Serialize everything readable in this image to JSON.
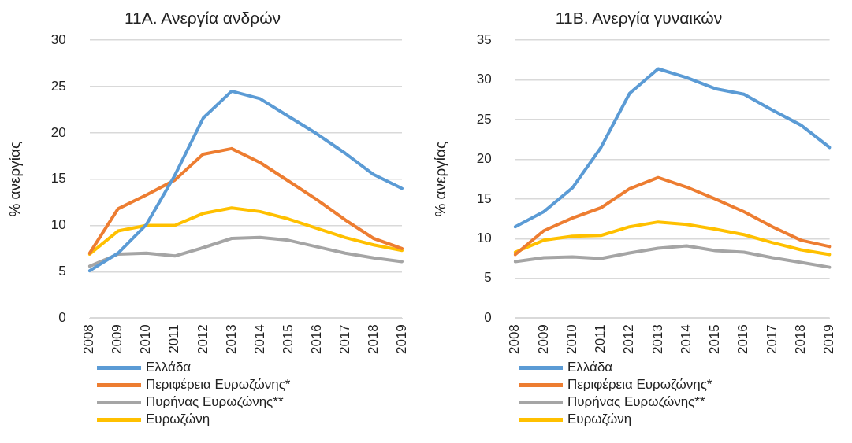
{
  "chart_data": [
    {
      "type": "line",
      "title": "11Α. Ανεργία ανδρών",
      "ylabel": "% ανεργίας",
      "categories": [
        "2008",
        "2009",
        "2010",
        "2011",
        "2012",
        "2013",
        "2014",
        "2015",
        "2016",
        "2017",
        "2018",
        "2019"
      ],
      "ylim": [
        0,
        30
      ],
      "yticks": [
        0,
        5,
        10,
        15,
        20,
        25,
        30
      ],
      "grid": "y",
      "legend": "bottom left",
      "marker": "none",
      "line_style": "solid",
      "series": [
        {
          "name": "Ελλάδα",
          "color": "#5b9bd5",
          "values": [
            5.1,
            7.0,
            10.1,
            15.4,
            21.6,
            24.5,
            23.7,
            21.8,
            19.9,
            17.8,
            15.5,
            14.0
          ]
        },
        {
          "name": "Περιφέρεια Ευρωζώνης*",
          "color": "#ed7d31",
          "values": [
            7.0,
            11.8,
            13.3,
            14.9,
            17.7,
            18.3,
            16.8,
            14.8,
            12.8,
            10.6,
            8.6,
            7.5
          ]
        },
        {
          "name": "Πυρήνας Ευρωζώνης**",
          "color": "#a5a5a5",
          "values": [
            5.6,
            6.9,
            7.0,
            6.7,
            7.6,
            8.6,
            8.7,
            8.4,
            7.7,
            7.0,
            6.5,
            6.1
          ]
        },
        {
          "name": "Ευρωζώνη",
          "color": "#ffc000",
          "values": [
            6.9,
            9.4,
            10.0,
            10.0,
            11.3,
            11.9,
            11.5,
            10.7,
            9.7,
            8.7,
            7.9,
            7.3
          ]
        }
      ]
    },
    {
      "type": "line",
      "title": "11Β. Ανεργία γυναικών",
      "ylabel": "% ανεργίας",
      "categories": [
        "2008",
        "2009",
        "2010",
        "2011",
        "2012",
        "2013",
        "2014",
        "2015",
        "2016",
        "2017",
        "2018",
        "2019"
      ],
      "ylim": [
        0,
        35
      ],
      "yticks": [
        0,
        5,
        10,
        15,
        20,
        25,
        30,
        35
      ],
      "grid": "y",
      "legend": "bottom left",
      "marker": "none",
      "line_style": "solid",
      "series": [
        {
          "name": "Ελλάδα",
          "color": "#5b9bd5",
          "values": [
            11.5,
            13.4,
            16.4,
            21.5,
            28.3,
            31.4,
            30.3,
            28.9,
            28.2,
            26.2,
            24.3,
            21.5
          ]
        },
        {
          "name": "Περιφέρεια Ευρωζώνης*",
          "color": "#ed7d31",
          "values": [
            8.0,
            11.0,
            12.6,
            13.9,
            16.3,
            17.7,
            16.5,
            15.0,
            13.4,
            11.5,
            9.8,
            9.0
          ]
        },
        {
          "name": "Πυρήνας Ευρωζώνης**",
          "color": "#a5a5a5",
          "values": [
            7.1,
            7.6,
            7.7,
            7.5,
            8.2,
            8.8,
            9.1,
            8.5,
            8.3,
            7.6,
            7.0,
            6.4
          ]
        },
        {
          "name": "Ευρωζώνη",
          "color": "#ffc000",
          "values": [
            8.3,
            9.8,
            10.3,
            10.4,
            11.5,
            12.1,
            11.8,
            11.2,
            10.5,
            9.5,
            8.6,
            8.0
          ]
        }
      ]
    }
  ]
}
